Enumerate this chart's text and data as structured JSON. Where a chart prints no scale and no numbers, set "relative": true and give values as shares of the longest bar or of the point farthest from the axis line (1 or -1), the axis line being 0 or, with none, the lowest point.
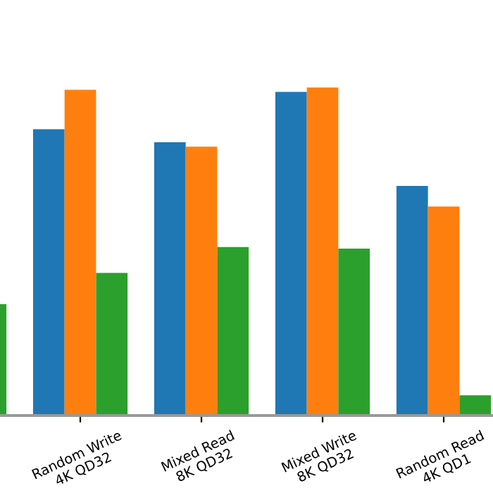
{
  "chart_data": {
    "type": "bar",
    "relative": true,
    "categories": [
      null,
      "Random Write\n4K QD32",
      "Mixed Read\n8K QD32",
      "Mixed Write\n8K QD32",
      "Random Read\n4K QD1"
    ],
    "series": [
      {
        "color": "#1f77b4",
        "values": [
          null,
          0.873,
          0.833,
          0.987,
          0.7
        ]
      },
      {
        "color": "#ff7f0e",
        "values": [
          null,
          0.993,
          0.82,
          1.0,
          0.637
        ]
      },
      {
        "color": "#2ca02c",
        "values": [
          0.34,
          0.435,
          0.514,
          0.509,
          0.062
        ]
      }
    ],
    "grid": false,
    "legend": false
  }
}
